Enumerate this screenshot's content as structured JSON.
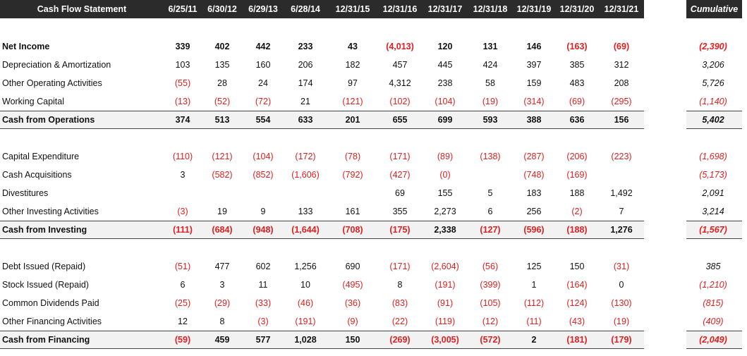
{
  "header": {
    "title": "Cash Flow Statement",
    "columns": [
      "6/25/11",
      "6/30/12",
      "6/29/13",
      "6/28/14",
      "12/31/15",
      "12/31/16",
      "12/31/17",
      "12/31/18",
      "12/31/19",
      "12/31/20",
      "12/31/21"
    ],
    "cumulative_label": "Cumulative"
  },
  "rows": [
    {
      "label": "Net Income",
      "bold": true,
      "total": false,
      "values": [
        "339",
        "402",
        "442",
        "233",
        "43",
        "(4,013)",
        "120",
        "131",
        "146",
        "(163)",
        "(69)"
      ],
      "cumulative": "(2,390)"
    },
    {
      "label": "Depreciation & Amortization",
      "bold": false,
      "total": false,
      "values": [
        "103",
        "135",
        "160",
        "206",
        "182",
        "457",
        "445",
        "424",
        "397",
        "385",
        "312"
      ],
      "cumulative": "3,206"
    },
    {
      "label": "Other Operating Activities",
      "bold": false,
      "total": false,
      "values": [
        "(55)",
        "28",
        "24",
        "174",
        "97",
        "4,312",
        "238",
        "58",
        "159",
        "483",
        "208"
      ],
      "cumulative": "5,726"
    },
    {
      "label": "Working Capital",
      "bold": false,
      "total": false,
      "values": [
        "(13)",
        "(52)",
        "(72)",
        "21",
        "(121)",
        "(102)",
        "(104)",
        "(19)",
        "(314)",
        "(69)",
        "(295)"
      ],
      "cumulative": "(1,140)"
    },
    {
      "label": "Cash from Operations",
      "bold": true,
      "total": true,
      "values": [
        "374",
        "513",
        "554",
        "633",
        "201",
        "655",
        "699",
        "593",
        "388",
        "636",
        "156"
      ],
      "cumulative": "5,402"
    },
    {
      "label": "Capital Expenditure",
      "bold": false,
      "total": false,
      "values": [
        "(110)",
        "(121)",
        "(104)",
        "(172)",
        "(78)",
        "(171)",
        "(89)",
        "(138)",
        "(287)",
        "(206)",
        "(223)"
      ],
      "cumulative": "(1,698)"
    },
    {
      "label": "Cash Acquisitions",
      "bold": false,
      "total": false,
      "values": [
        "3",
        "(582)",
        "(852)",
        "(1,606)",
        "(792)",
        "(427)",
        "(0)",
        "",
        "(748)",
        "(169)",
        ""
      ],
      "cumulative": "(5,173)"
    },
    {
      "label": "Divestitures",
      "bold": false,
      "total": false,
      "values": [
        "",
        "",
        "",
        "",
        "",
        "69",
        "155",
        "5",
        "183",
        "188",
        "1,492"
      ],
      "cumulative": "2,091"
    },
    {
      "label": "Other Investing Activities",
      "bold": false,
      "total": false,
      "values": [
        "(3)",
        "19",
        "9",
        "133",
        "161",
        "355",
        "2,273",
        "6",
        "256",
        "(2)",
        "7"
      ],
      "cumulative": "3,214"
    },
    {
      "label": "Cash from Investing",
      "bold": true,
      "total": true,
      "values": [
        "(111)",
        "(684)",
        "(948)",
        "(1,644)",
        "(708)",
        "(175)",
        "2,338",
        "(127)",
        "(596)",
        "(188)",
        "1,276"
      ],
      "cumulative": "(1,567)"
    },
    {
      "label": "Debt Issued (Repaid)",
      "bold": false,
      "total": false,
      "values": [
        "(51)",
        "477",
        "602",
        "1,256",
        "690",
        "(171)",
        "(2,604)",
        "(56)",
        "125",
        "150",
        "(31)"
      ],
      "cumulative": "385"
    },
    {
      "label": "Stock Issued (Repaid)",
      "bold": false,
      "total": false,
      "values": [
        "6",
        "3",
        "11",
        "10",
        "(495)",
        "8",
        "(191)",
        "(399)",
        "1",
        "(164)",
        "0"
      ],
      "cumulative": "(1,210)"
    },
    {
      "label": "Common Dividends Paid",
      "bold": false,
      "total": false,
      "values": [
        "(25)",
        "(29)",
        "(33)",
        "(46)",
        "(36)",
        "(83)",
        "(91)",
        "(105)",
        "(112)",
        "(124)",
        "(130)"
      ],
      "cumulative": "(815)"
    },
    {
      "label": "Other Financing Activities",
      "bold": false,
      "total": false,
      "values": [
        "12",
        "8",
        "(3)",
        "(191)",
        "(9)",
        "(22)",
        "(119)",
        "(12)",
        "(11)",
        "(43)",
        "(19)"
      ],
      "cumulative": "(409)"
    },
    {
      "label": "Cash from Financing",
      "bold": true,
      "total": true,
      "values": [
        "(59)",
        "459",
        "577",
        "1,028",
        "150",
        "(269)",
        "(3,005)",
        "(572)",
        "2",
        "(181)",
        "(179)"
      ],
      "cumulative": "(2,049)"
    }
  ],
  "colors": {
    "header_bg": "#2b2b2b",
    "negative": "#e02020",
    "total_bg": "#f2f2f2"
  }
}
